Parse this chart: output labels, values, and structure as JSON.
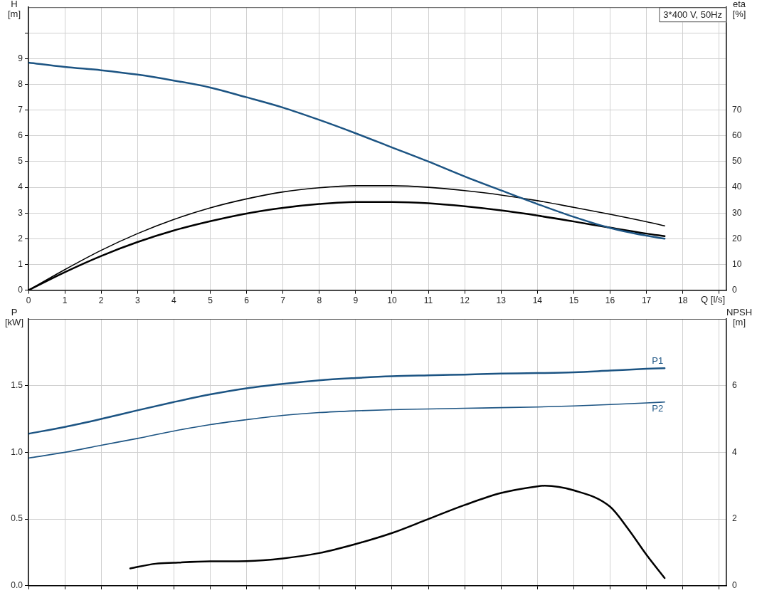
{
  "chart_data": [
    {
      "type": "line",
      "title": "3*400 V, 50Hz",
      "xlabel": "Q [l/s]",
      "ylabel": "H [m]",
      "y2label": "eta [%]",
      "xlim": [
        0,
        19.2
      ],
      "xticks": [
        0,
        1,
        2,
        3,
        4,
        5,
        6,
        7,
        8,
        9,
        10,
        11,
        12,
        13,
        14,
        15,
        16,
        17,
        18,
        {
          "value": 19,
          "label": null
        }
      ],
      "ylim": [
        0,
        11
      ],
      "yticks": [
        0,
        1,
        2,
        3,
        4,
        5,
        6,
        7,
        8,
        9,
        {
          "value": 10,
          "label": null
        }
      ],
      "y2lim": [
        0,
        110
      ],
      "y2ticks": [
        0,
        10,
        20,
        30,
        40,
        50,
        60,
        70
      ],
      "grid": true,
      "legend": false,
      "marker": "none",
      "line_style": "solid",
      "series": [
        {
          "color": "#1c5483",
          "x": [
            0,
            1,
            2,
            3,
            4,
            5,
            6,
            7,
            8,
            9,
            10,
            11,
            12,
            13,
            14,
            15,
            16,
            17,
            17.5
          ],
          "values": [
            8.85,
            8.68,
            8.55,
            8.38,
            8.15,
            7.88,
            7.5,
            7.1,
            6.62,
            6.1,
            5.55,
            5.0,
            4.42,
            3.88,
            3.35,
            2.85,
            2.42,
            2.12,
            2.0
          ]
        },
        {
          "color": "#000000",
          "axis": "y2",
          "x": [
            0,
            1,
            2,
            3,
            4,
            5,
            6,
            7,
            8,
            9,
            10,
            11,
            12,
            13,
            14,
            15,
            16,
            17,
            17.5
          ],
          "values": [
            0,
            8,
            15.5,
            22,
            27.5,
            32,
            35.5,
            38.2,
            39.8,
            40.6,
            40.6,
            40,
            38.7,
            37,
            34.8,
            32.2,
            29.5,
            26.6,
            25
          ]
        },
        {
          "color": "#000000",
          "axis": "y2",
          "x": [
            0,
            1,
            2,
            3,
            4,
            5,
            6,
            7,
            8,
            9,
            10,
            11,
            12,
            13,
            14,
            15,
            16,
            17,
            17.5
          ],
          "values": [
            0,
            7,
            13.3,
            18.7,
            23.2,
            26.8,
            29.8,
            32,
            33.5,
            34.3,
            34.3,
            33.8,
            32.6,
            31,
            29,
            26.7,
            24.3,
            22,
            21
          ]
        }
      ]
    },
    {
      "type": "line",
      "ylabel": "P [kW]",
      "y2label": "NPSH [m]",
      "xlim": [
        0,
        19.2
      ],
      "xticks": [
        {
          "value": 0,
          "label": null
        },
        {
          "value": 1,
          "label": null
        },
        {
          "value": 2,
          "label": null
        },
        {
          "value": 3,
          "label": null
        },
        {
          "value": 4,
          "label": null
        },
        {
          "value": 5,
          "label": null
        },
        {
          "value": 6,
          "label": null
        },
        {
          "value": 7,
          "label": null
        },
        {
          "value": 8,
          "label": null
        },
        {
          "value": 9,
          "label": null
        },
        {
          "value": 10,
          "label": null
        },
        {
          "value": 11,
          "label": null
        },
        {
          "value": 12,
          "label": null
        },
        {
          "value": 13,
          "label": null
        },
        {
          "value": 14,
          "label": null
        },
        {
          "value": 15,
          "label": null
        },
        {
          "value": 16,
          "label": null
        },
        {
          "value": 17,
          "label": null
        },
        {
          "value": 18,
          "label": null
        },
        {
          "value": 19,
          "label": null
        }
      ],
      "ylim": [
        0,
        2
      ],
      "yticks": [
        {
          "value": 0,
          "label": "0.0"
        },
        {
          "value": 0.5,
          "label": "0.5"
        },
        {
          "value": 1,
          "label": "1.0"
        },
        1.5
      ],
      "y2lim": [
        0,
        8
      ],
      "y2ticks": [
        0,
        2,
        4,
        6
      ],
      "tick_labels": "y",
      "grid": true,
      "legend": false,
      "marker": "none",
      "line_style": "solid",
      "series": [
        {
          "name": "P1",
          "color": "#1c5483",
          "x": [
            0,
            1,
            2,
            3,
            4,
            5,
            6,
            7,
            8,
            9,
            10,
            11,
            12,
            13,
            14,
            15,
            16,
            17,
            17.5
          ],
          "values": [
            1.14,
            1.19,
            1.25,
            1.315,
            1.377,
            1.434,
            1.48,
            1.513,
            1.54,
            1.557,
            1.57,
            1.577,
            1.583,
            1.59,
            1.594,
            1.6,
            1.613,
            1.626,
            1.63
          ]
        },
        {
          "name": "P2",
          "color": "#1c5483",
          "x": [
            0,
            1,
            2,
            3,
            4,
            5,
            6,
            7,
            8,
            9,
            10,
            11,
            12,
            13,
            14,
            15,
            16,
            17,
            17.5
          ],
          "values": [
            0.957,
            1.0,
            1.053,
            1.104,
            1.16,
            1.208,
            1.245,
            1.277,
            1.298,
            1.311,
            1.32,
            1.325,
            1.33,
            1.335,
            1.34,
            1.348,
            1.358,
            1.37,
            1.377
          ]
        },
        {
          "color": "#000000",
          "axis": "y2",
          "x": [
            2.8,
            3.5,
            4,
            5,
            6,
            7,
            8,
            9,
            10,
            11,
            12,
            13,
            14,
            14.2,
            15,
            16,
            16.5,
            17,
            17.5
          ],
          "values": [
            0.52,
            0.66,
            0.69,
            0.73,
            0.74,
            0.82,
            0.98,
            1.25,
            1.58,
            2.0,
            2.42,
            2.78,
            2.98,
            3.0,
            2.86,
            2.37,
            1.7,
            0.93,
            0.23
          ]
        }
      ]
    }
  ]
}
